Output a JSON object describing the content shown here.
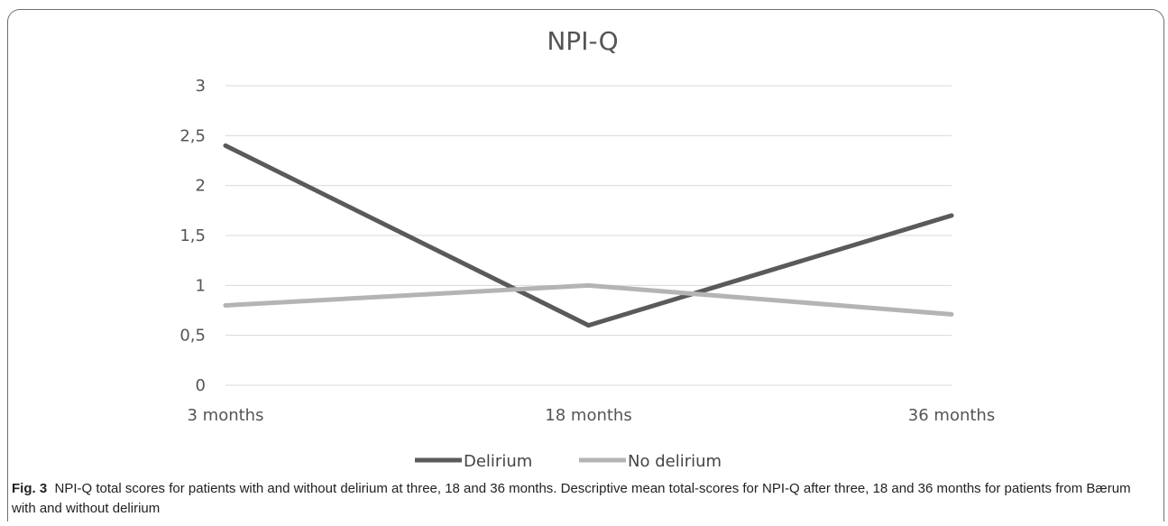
{
  "chart_data": {
    "type": "line",
    "title": "NPI-Q",
    "categories": [
      "3 months",
      "18 months",
      "36 months"
    ],
    "yticks": [
      "0",
      "0,5",
      "1",
      "1,5",
      "2",
      "2,5",
      "3"
    ],
    "ylim": [
      0,
      3
    ],
    "grid": true,
    "legend_position": "bottom",
    "series": [
      {
        "name": "Delirium",
        "values": [
          2.4,
          0.6,
          1.7
        ],
        "color": "#5a5a5a"
      },
      {
        "name": "No delirium",
        "values": [
          0.8,
          1.0,
          0.71
        ],
        "color": "#b4b4b4"
      }
    ]
  },
  "caption": {
    "label": "Fig. 3",
    "text": "NPI-Q total scores for patients with and without delirium at three, 18 and 36 months. Descriptive mean total-scores for NPI-Q after three, 18 and 36 months for patients from Bærum with and without delirium"
  }
}
